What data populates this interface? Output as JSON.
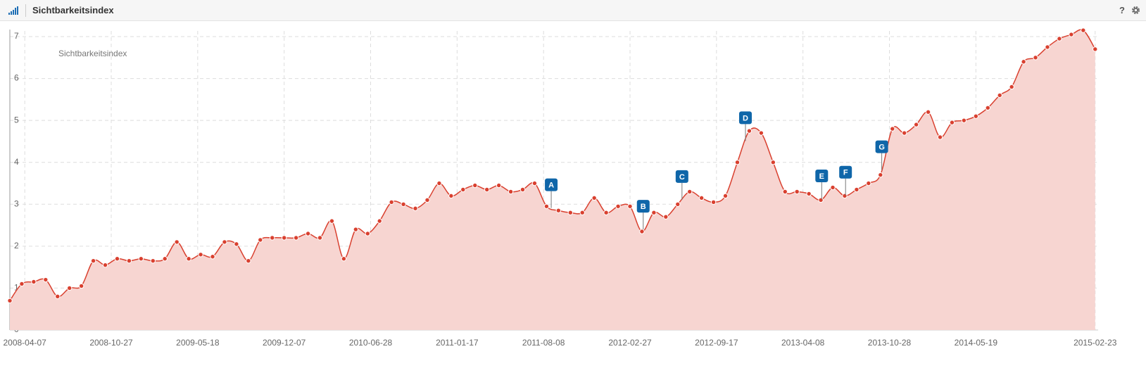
{
  "chart_data": {
    "type": "line",
    "title": "Sichtbarkeitsindex",
    "x": [
      "2008-03-03",
      "2008-03-31",
      "2008-04-28",
      "2008-05-26",
      "2008-06-23",
      "2008-07-21",
      "2008-08-18",
      "2008-09-15",
      "2008-10-13",
      "2008-11-10",
      "2008-12-08",
      "2009-01-05",
      "2009-02-02",
      "2009-03-02",
      "2009-03-30",
      "2009-04-27",
      "2009-05-25",
      "2009-06-22",
      "2009-07-20",
      "2009-08-17",
      "2009-09-14",
      "2009-10-12",
      "2009-11-09",
      "2009-12-07",
      "2010-01-04",
      "2010-02-01",
      "2010-03-01",
      "2010-03-29",
      "2010-04-26",
      "2010-05-24",
      "2010-06-21",
      "2010-07-19",
      "2010-08-16",
      "2010-09-13",
      "2010-10-11",
      "2010-11-08",
      "2010-12-06",
      "2011-01-03",
      "2011-01-31",
      "2011-02-28",
      "2011-03-28",
      "2011-04-25",
      "2011-05-23",
      "2011-06-20",
      "2011-07-18",
      "2011-08-15",
      "2011-09-12",
      "2011-10-10",
      "2011-11-07",
      "2011-12-05",
      "2012-01-02",
      "2012-01-30",
      "2012-02-27",
      "2012-03-26",
      "2012-04-23",
      "2012-05-21",
      "2012-06-18",
      "2012-07-16",
      "2012-08-13",
      "2012-09-10",
      "2012-10-08",
      "2012-11-05",
      "2012-12-03",
      "2012-12-31",
      "2013-01-28",
      "2013-02-25",
      "2013-03-25",
      "2013-04-22",
      "2013-05-20",
      "2013-06-17",
      "2013-07-15",
      "2013-08-12",
      "2013-09-09",
      "2013-10-07",
      "2013-11-04",
      "2013-12-02",
      "2013-12-30",
      "2014-01-27",
      "2014-02-24",
      "2014-03-24",
      "2014-04-21",
      "2014-05-19",
      "2014-06-16",
      "2014-07-14",
      "2014-08-11",
      "2014-09-08",
      "2014-10-06",
      "2014-11-03",
      "2014-12-01",
      "2014-12-29",
      "2015-01-26",
      "2015-02-23"
    ],
    "series": [
      {
        "name": "Sichtbarkeitsindex",
        "color": "#d9402f",
        "fill": "#f7d5d1",
        "values": [
          0.7,
          1.1,
          1.15,
          1.2,
          0.8,
          1.0,
          1.05,
          1.65,
          1.55,
          1.7,
          1.65,
          1.7,
          1.65,
          1.7,
          2.1,
          1.7,
          1.8,
          1.75,
          2.1,
          2.05,
          1.65,
          2.15,
          2.2,
          2.2,
          2.2,
          2.3,
          2.2,
          2.6,
          1.7,
          2.4,
          2.3,
          2.6,
          3.05,
          3.0,
          2.9,
          3.1,
          3.5,
          3.2,
          3.35,
          3.45,
          3.35,
          3.45,
          3.3,
          3.35,
          3.5,
          2.95,
          2.85,
          2.8,
          2.8,
          3.15,
          2.8,
          2.95,
          2.95,
          2.35,
          2.8,
          2.7,
          3.0,
          3.3,
          3.15,
          3.05,
          3.2,
          4.0,
          4.75,
          4.7,
          4.0,
          3.3,
          3.3,
          3.25,
          3.1,
          3.4,
          3.2,
          3.35,
          3.5,
          3.7,
          4.8,
          4.7,
          4.9,
          5.2,
          4.6,
          4.95,
          5.0,
          5.1,
          5.3,
          5.6,
          5.8,
          6.4,
          6.5,
          6.75,
          6.95,
          7.05,
          7.15,
          6.7
        ]
      }
    ],
    "annotations": [
      {
        "label": "A",
        "x": "2011-08-26"
      },
      {
        "label": "B",
        "x": "2012-03-29"
      },
      {
        "label": "C",
        "x": "2012-06-28"
      },
      {
        "label": "D",
        "x": "2012-11-24"
      },
      {
        "label": "E",
        "x": "2013-05-22"
      },
      {
        "label": "F",
        "x": "2013-07-17"
      },
      {
        "label": "G",
        "x": "2013-10-10"
      }
    ],
    "xlim": [
      "2008-03-03",
      "2015-03-02"
    ],
    "xticks": [
      "2008-04-07",
      "2008-10-27",
      "2009-05-18",
      "2009-12-07",
      "2010-06-28",
      "2011-01-17",
      "2011-08-08",
      "2012-02-27",
      "2012-09-17",
      "2013-04-08",
      "2013-10-28",
      "2014-05-19",
      "2015-02-23"
    ],
    "ylim": [
      0,
      7
    ],
    "yticks": [
      0,
      1,
      2,
      3,
      4,
      5,
      6,
      7
    ],
    "grid": true
  }
}
